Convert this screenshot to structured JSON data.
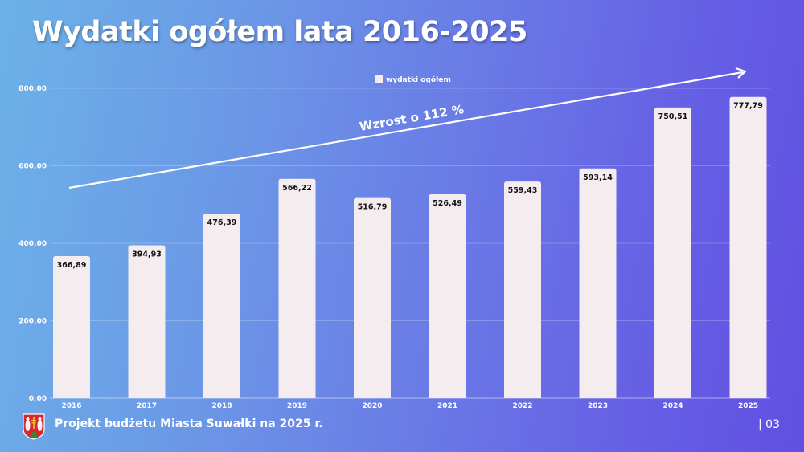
{
  "slide": {
    "title": "Wydatki ogółem lata 2016-2025",
    "footer": "Projekt budżetu Miasta Suwałki na 2025 r.",
    "page_number": "| 03",
    "crest_icon": "suwalki-coat-of-arms-icon"
  },
  "colors": {
    "bar": "#f4ecee",
    "text_light": "#ffffff",
    "label_dark": "#111111"
  },
  "chart_data": {
    "type": "bar",
    "title": "Wydatki ogółem lata 2016-2025",
    "xlabel": "",
    "ylabel": "",
    "categories": [
      "2016",
      "2017",
      "2018",
      "2019",
      "2020",
      "2021",
      "2022",
      "2023",
      "2024",
      "2025"
    ],
    "series": [
      {
        "name": "wydatki ogółem",
        "values": [
          366.89,
          394.93,
          476.39,
          566.22,
          516.79,
          526.49,
          559.43,
          593.14,
          750.51,
          777.79
        ],
        "labels": [
          "366,89",
          "394,93",
          "476,39",
          "566,22",
          "516,79",
          "526,49",
          "559,43",
          "593,14",
          "750,51",
          "777,79"
        ]
      }
    ],
    "ylim": [
      0,
      800
    ],
    "yticks": [
      0,
      200,
      400,
      600,
      800
    ],
    "ytick_labels": [
      "0,00",
      "200,00",
      "400,00",
      "600,00",
      "800,00"
    ],
    "grid": true,
    "legend": {
      "position": "top-center",
      "entries": [
        "wydatki ogółem"
      ]
    },
    "annotation": {
      "text": "Wzrost o 112 %",
      "type": "trend-arrow",
      "from_category": "2016",
      "to_category": "2025"
    }
  }
}
